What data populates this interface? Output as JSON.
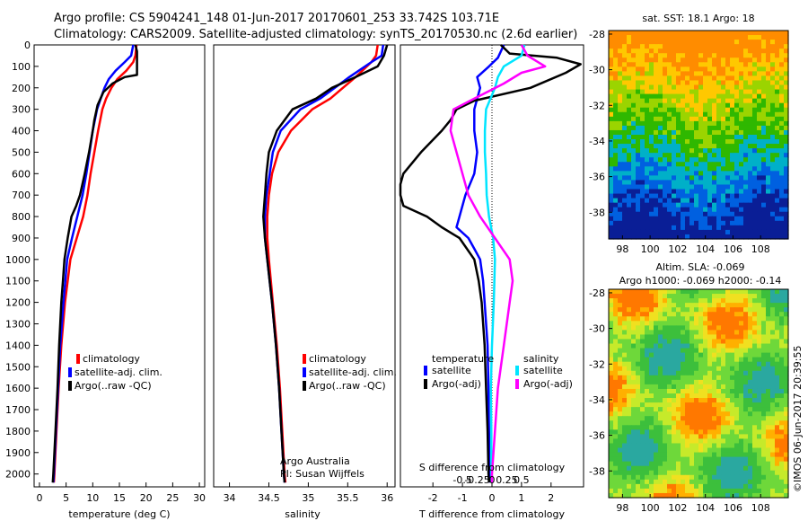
{
  "header": {
    "line1": "Argo profile: CS 5904241_148 01-Jun-2017 20170601_253 33.742S 103.71E",
    "line2": "Climatology: CARS2009. Satellite-adjusted climatology: synTS_20170530.nc (2.6d earlier)"
  },
  "colors": {
    "climatology": "#ff0000",
    "satellite": "#0000ff",
    "argo": "#000000",
    "cyan": "#00e5ff",
    "magenta": "#ff00ff"
  },
  "chart_data": [
    {
      "type": "line",
      "id": "temperature",
      "xlabel": "temperature (deg C)",
      "xlim": [
        -1,
        31
      ],
      "ylim": [
        0,
        2060
      ],
      "xticks": [
        0,
        5,
        10,
        15,
        20,
        25,
        30
      ],
      "yticks": [
        0,
        100,
        200,
        300,
        400,
        500,
        600,
        700,
        800,
        900,
        1000,
        1100,
        1200,
        1300,
        1400,
        1500,
        1600,
        1700,
        1800,
        1900,
        2000
      ],
      "legend": {
        "items": [
          "climatology",
          "satellite-adj. clim.",
          "Argo(..raw -QC)"
        ]
      },
      "series": [
        {
          "key": "climatology",
          "depth": [
            0,
            50,
            80,
            120,
            160,
            200,
            250,
            300,
            400,
            500,
            600,
            700,
            800,
            900,
            1000,
            1200,
            1400,
            1600,
            1800,
            2000,
            2040
          ],
          "x": [
            18.2,
            18.0,
            17.6,
            16.3,
            14.6,
            13.5,
            12.5,
            11.8,
            11.0,
            10.3,
            9.6,
            9.0,
            8.2,
            7.0,
            5.8,
            4.8,
            4.1,
            3.6,
            3.2,
            2.8,
            2.7
          ]
        },
        {
          "key": "satellite",
          "depth": [
            0,
            50,
            80,
            120,
            160,
            200,
            250,
            300,
            400,
            500,
            600,
            700,
            800,
            900,
            1000,
            1200,
            1400,
            1600,
            1800,
            2000,
            2040
          ],
          "x": [
            17.6,
            17.2,
            16.0,
            14.3,
            13.0,
            12.2,
            11.5,
            10.8,
            10.0,
            9.4,
            8.8,
            8.1,
            7.1,
            6.1,
            5.2,
            4.5,
            3.9,
            3.5,
            3.1,
            2.7,
            2.6
          ]
        },
        {
          "key": "argo",
          "depth": [
            0,
            30,
            140,
            150,
            180,
            220,
            280,
            350,
            400,
            500,
            600,
            700,
            750,
            800,
            900,
            1000,
            1100,
            1200,
            1400,
            1600,
            1800,
            2000,
            2040
          ],
          "x": [
            18.0,
            18.3,
            18.3,
            16.0,
            13.7,
            12.0,
            10.9,
            10.3,
            10.0,
            9.3,
            8.5,
            7.6,
            6.9,
            6.0,
            5.3,
            4.7,
            4.4,
            4.1,
            3.7,
            3.4,
            3.0,
            2.6,
            2.5
          ]
        }
      ]
    },
    {
      "type": "line",
      "id": "salinity",
      "xlabel": "salinity",
      "xlim": [
        33.8,
        36.1
      ],
      "ylim": [
        0,
        2060
      ],
      "xticks": [
        34,
        34.5,
        35,
        35.5,
        36
      ],
      "xticklabels": [
        "34",
        "34.5",
        "35",
        "35.5",
        "36"
      ],
      "legend": {
        "items": [
          "climatology",
          "satellite-adj. clim.",
          "Argo(..raw -QC)"
        ]
      },
      "annotation": [
        "Argo Australia",
        "PI: Susan Wijffels"
      ],
      "series": [
        {
          "key": "climatology",
          "depth": [
            0,
            50,
            80,
            150,
            250,
            300,
            400,
            500,
            600,
            700,
            800,
            900,
            1000,
            1200,
            1400,
            1600,
            1800,
            2000,
            2040
          ],
          "x": [
            35.88,
            35.86,
            35.8,
            35.6,
            35.28,
            35.05,
            34.78,
            34.62,
            34.54,
            34.5,
            34.48,
            34.48,
            34.5,
            34.55,
            34.6,
            34.64,
            34.67,
            34.7,
            34.71
          ]
        },
        {
          "key": "satellite",
          "depth": [
            0,
            50,
            80,
            150,
            250,
            300,
            400,
            500,
            600,
            700,
            800,
            900,
            1000,
            1200,
            1400,
            1600,
            1800,
            2000,
            2040
          ],
          "x": [
            35.95,
            35.93,
            35.8,
            35.52,
            35.15,
            34.9,
            34.65,
            34.55,
            34.51,
            34.47,
            34.45,
            34.45,
            34.48,
            34.54,
            34.59,
            34.63,
            34.66,
            34.69,
            34.7
          ]
        },
        {
          "key": "argo",
          "depth": [
            0,
            50,
            100,
            150,
            200,
            250,
            300,
            400,
            500,
            600,
            700,
            800,
            900,
            1000,
            1200,
            1400,
            1600,
            1800,
            2000,
            2040
          ],
          "x": [
            36.0,
            35.96,
            35.88,
            35.6,
            35.3,
            35.1,
            34.8,
            34.6,
            34.5,
            34.47,
            34.45,
            34.43,
            34.45,
            34.48,
            34.54,
            34.59,
            34.63,
            34.66,
            34.69,
            34.7
          ]
        }
      ]
    },
    {
      "type": "line",
      "id": "difference",
      "xlabel": "T difference from climatology",
      "xlabel2": "S difference from climatology",
      "xlim": [
        -3.1,
        3.1
      ],
      "ylim": [
        0,
        2060
      ],
      "xticks": [
        -2,
        -1,
        0,
        1,
        2
      ],
      "xticks2": [
        -0.5,
        -0.25,
        0,
        0.25,
        0.5
      ],
      "xticklabels2": [
        "-0.5",
        "-0.25",
        "0",
        "0.25",
        "0.5"
      ],
      "legend": {
        "heading_t": "temperature",
        "heading_s": "salinity",
        "items_t": [
          "satellite",
          "Argo(-adj)"
        ],
        "items_s": [
          "satellite",
          "Argo(-adj)"
        ]
      },
      "series": [
        {
          "key": "t_satellite",
          "color": "satellite",
          "depth": [
            0,
            60,
            100,
            150,
            200,
            300,
            400,
            500,
            600,
            700,
            800,
            850,
            900,
            950,
            1000,
            1100,
            1200,
            1400,
            1600,
            1800,
            2000,
            2040
          ],
          "x": [
            0.4,
            0.2,
            -0.1,
            -0.5,
            -0.4,
            -0.6,
            -0.6,
            -0.5,
            -0.6,
            -0.9,
            -1.1,
            -1.2,
            -0.8,
            -0.6,
            -0.4,
            -0.3,
            -0.25,
            -0.15,
            -0.12,
            -0.1,
            -0.08,
            -0.08
          ]
        },
        {
          "key": "t_argo",
          "color": "argo",
          "depth": [
            0,
            40,
            60,
            90,
            130,
            200,
            260,
            300,
            350,
            400,
            500,
            600,
            650,
            700,
            750,
            800,
            850,
            900,
            1000,
            1100,
            1200,
            1400,
            1600,
            1800,
            2000,
            2040
          ],
          "x": [
            0.3,
            0.6,
            2.2,
            3.0,
            2.5,
            1.3,
            -0.6,
            -1.2,
            -1.4,
            -1.7,
            -2.4,
            -3.0,
            -3.1,
            -3.1,
            -3.0,
            -2.2,
            -1.7,
            -1.1,
            -0.6,
            -0.45,
            -0.35,
            -0.25,
            -0.2,
            -0.15,
            -0.12,
            -0.1
          ]
        },
        {
          "key": "s_satellite",
          "color": "cyan",
          "depth": [
            0,
            50,
            100,
            150,
            200,
            300,
            400,
            500,
            600,
            700,
            800,
            900,
            1000,
            1200,
            1400,
            1600,
            1800,
            2000,
            2040
          ],
          "x": [
            0.55,
            0.5,
            0.2,
            0.1,
            0.05,
            -0.1,
            -0.12,
            -0.12,
            -0.1,
            -0.09,
            -0.05,
            0.02,
            0.05,
            0.03,
            0.0,
            -0.02,
            -0.01,
            -0.01,
            0.0
          ]
        },
        {
          "key": "s_argo",
          "color": "magenta",
          "depth": [
            0,
            50,
            100,
            130,
            180,
            250,
            300,
            400,
            500,
            600,
            700,
            800,
            900,
            1000,
            1100,
            1200,
            1400,
            1600,
            1800,
            2000,
            2040
          ],
          "x": [
            0.5,
            0.6,
            0.9,
            0.5,
            0.2,
            -0.3,
            -0.65,
            -0.7,
            -0.6,
            -0.5,
            -0.4,
            -0.2,
            0.05,
            0.3,
            0.35,
            0.3,
            0.2,
            0.1,
            0.05,
            0.0,
            0.0
          ]
        }
      ]
    },
    {
      "type": "heatmap",
      "id": "sst_map",
      "title": "sat. SST: 18.1 Argo: 18",
      "xlim": [
        97,
        110
      ],
      "ylim": [
        -39.5,
        -27.8
      ],
      "xticks": [
        98,
        100,
        102,
        104,
        106,
        108
      ],
      "yticks": [
        -28,
        -30,
        -32,
        -34,
        -36,
        -38
      ],
      "description_colors": [
        "#ff8c00",
        "#ffc800",
        "#9bd400",
        "#2fb800",
        "#00b0c8",
        "#0060e0",
        "#0a1e96"
      ]
    },
    {
      "type": "heatmap",
      "id": "sla_map",
      "title": "Altim. SLA: -0.069",
      "title2": "Argo h1000: -0.069 h2000: -0.14",
      "xlim": [
        97,
        110
      ],
      "ylim": [
        -39.5,
        -27.8
      ],
      "xticks": [
        98,
        100,
        102,
        104,
        106,
        108
      ],
      "yticks": [
        -28,
        -30,
        -32,
        -34,
        -36,
        -38
      ],
      "description_colors": [
        "#3cbf3c",
        "#6ed83a",
        "#c6ea2a",
        "#f0e020",
        "#ffb000",
        "#ff7800",
        "#2aa8a0"
      ]
    }
  ],
  "footer": {
    "stamp": "©IMOS 06-Jun-2017 20:39:55"
  }
}
